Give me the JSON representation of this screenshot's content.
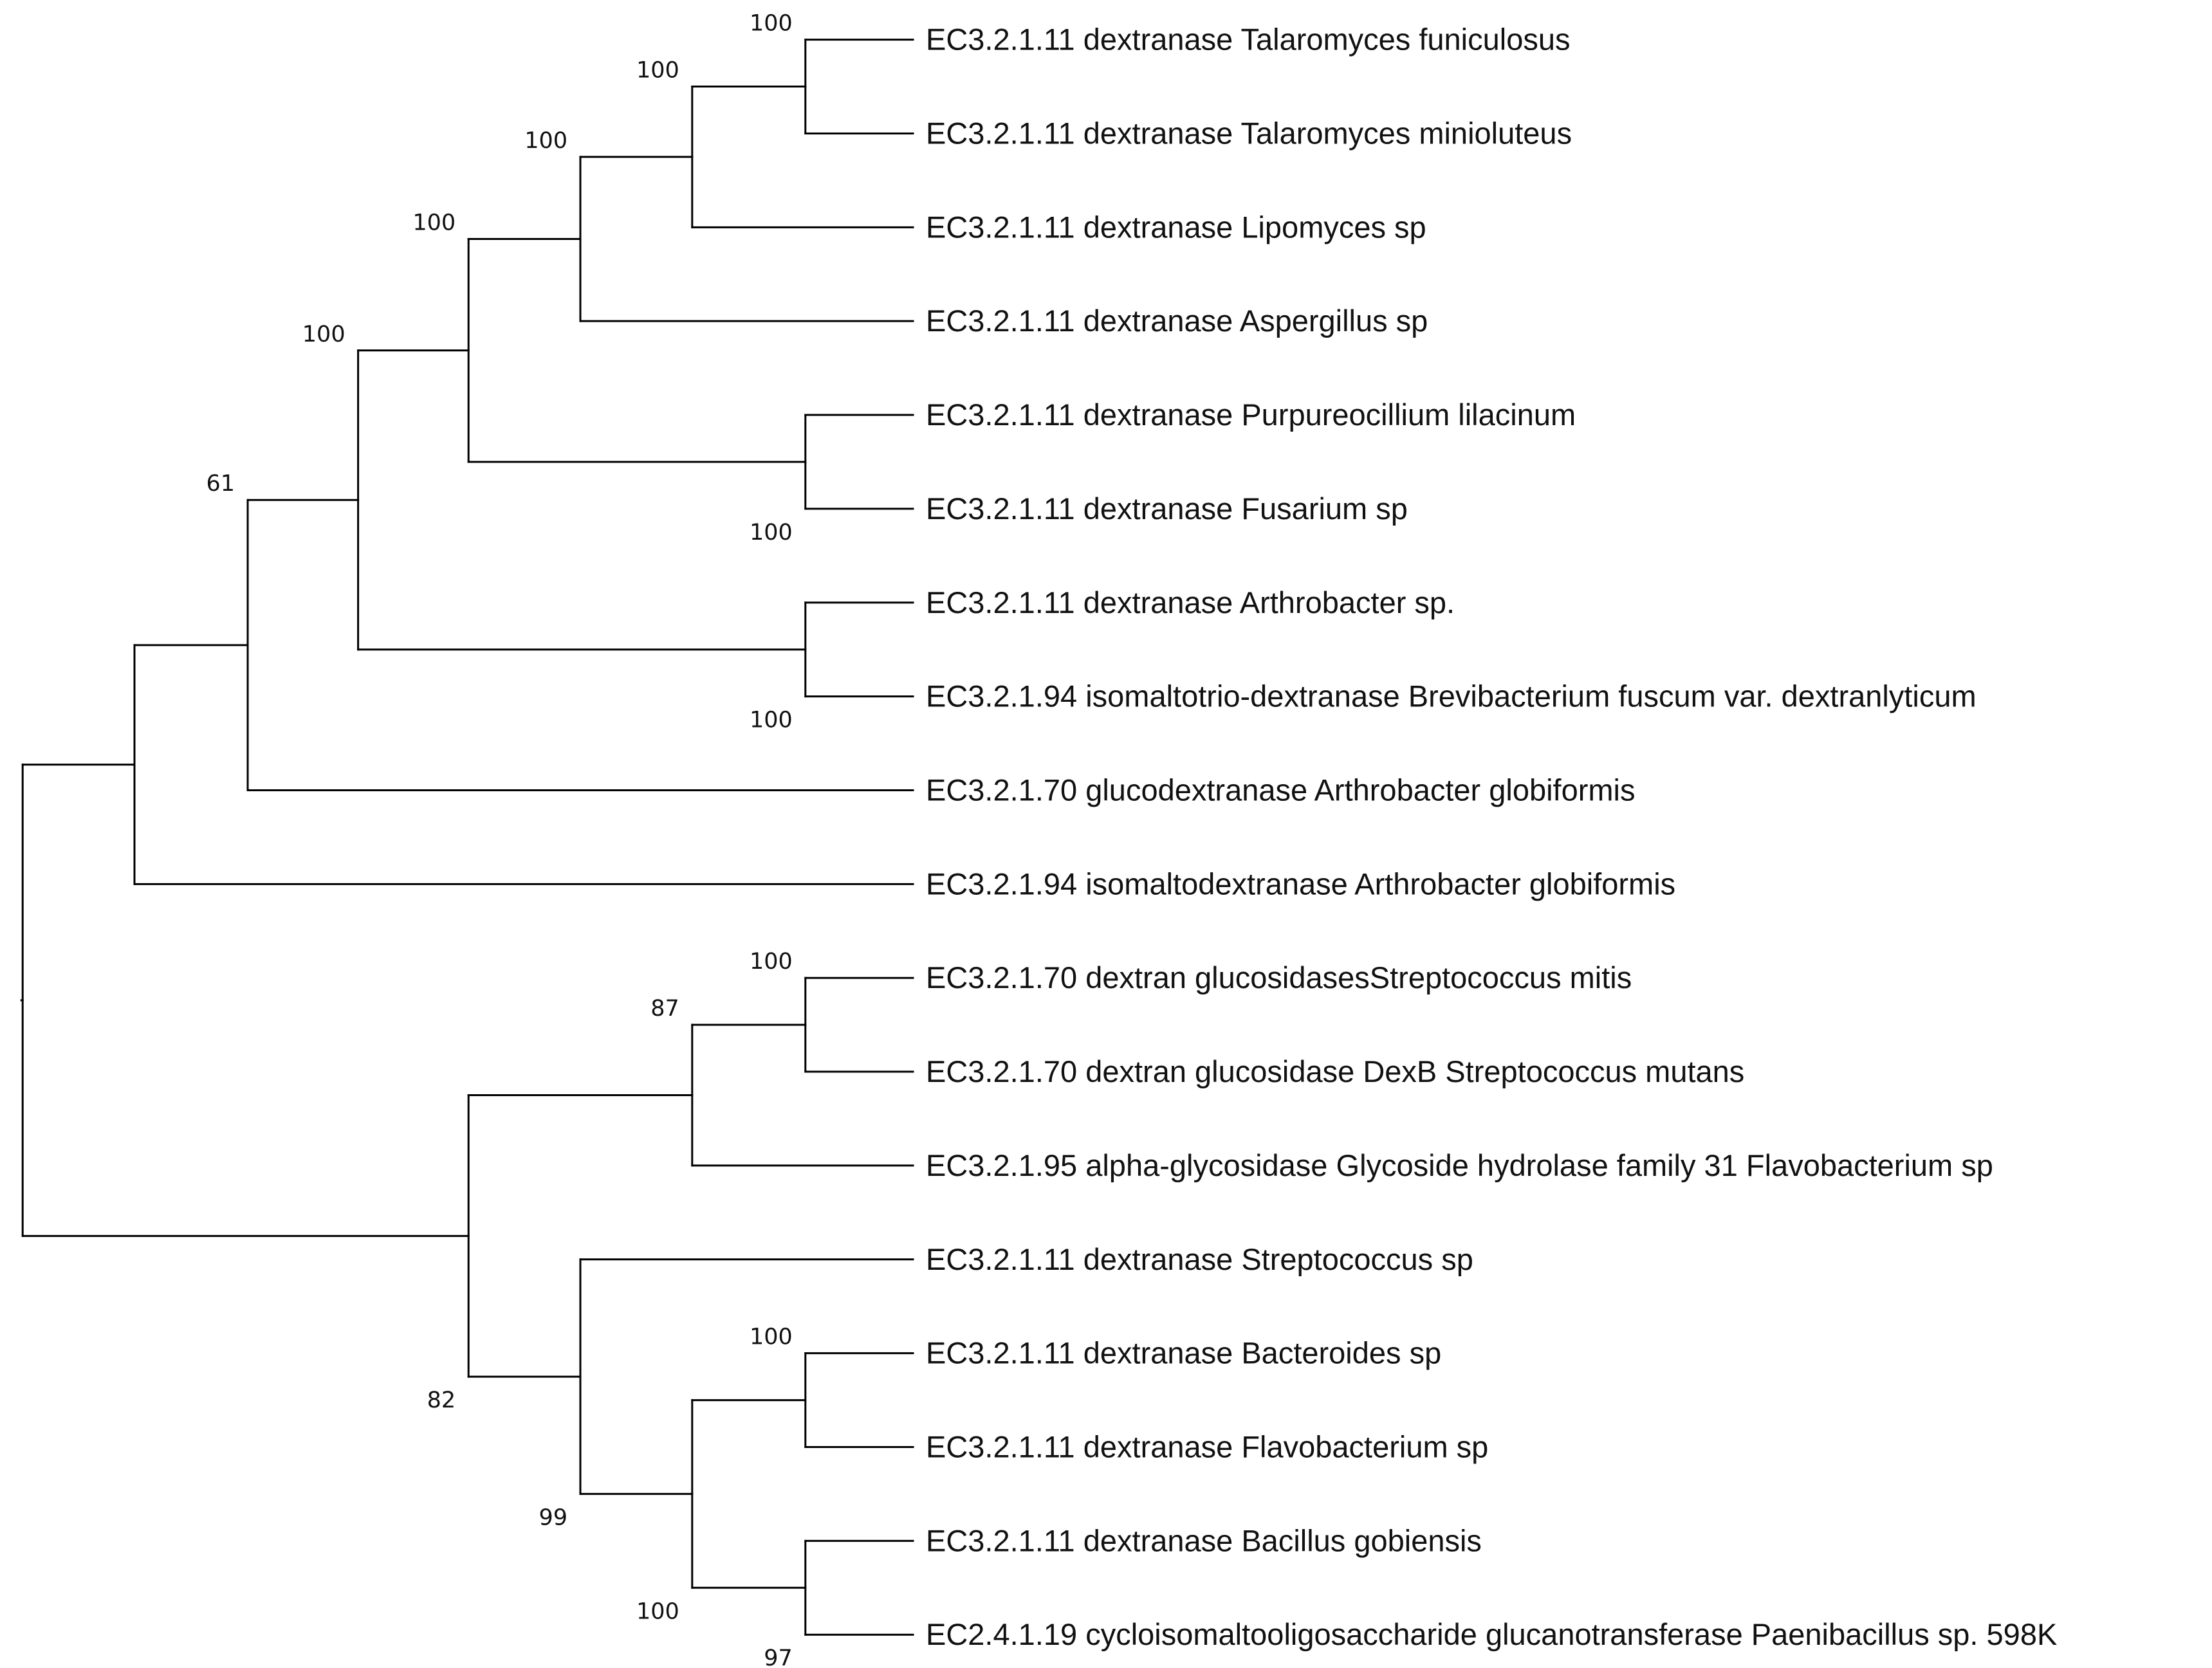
{
  "tree": {
    "leaves": [
      {
        "id": "L1",
        "label": "EC3.2.1.11 dextranase Talaromyces funiculosus"
      },
      {
        "id": "L2",
        "label": "EC3.2.1.11 dextranase Talaromyces minioluteus"
      },
      {
        "id": "L3",
        "label": "EC3.2.1.11 dextranase Lipomyces sp"
      },
      {
        "id": "L4",
        "label": "EC3.2.1.11 dextranase Aspergillus sp"
      },
      {
        "id": "L5",
        "label": "EC3.2.1.11 dextranase Purpureocillium lilacinum"
      },
      {
        "id": "L6",
        "label": "EC3.2.1.11 dextranase Fusarium sp"
      },
      {
        "id": "L7",
        "label": "EC3.2.1.11 dextranase Arthrobacter sp."
      },
      {
        "id": "L8",
        "label": "EC3.2.1.94 isomaltotrio-dextranase Brevibacterium fuscum var. dextranlyticum"
      },
      {
        "id": "L9",
        "label": "EC3.2.1.70 glucodextranase Arthrobacter globiformis"
      },
      {
        "id": "L10",
        "label": "EC3.2.1.94 isomaltodextranase Arthrobacter globiformis"
      },
      {
        "id": "L11",
        "label": "EC3.2.1.70 dextran glucosidasesStreptococcus mitis"
      },
      {
        "id": "L12",
        "label": "EC3.2.1.70 dextran glucosidase DexB Streptococcus mutans"
      },
      {
        "id": "L13",
        "label": "EC3.2.1.95 alpha-glycosidase Glycoside hydrolase family 31 Flavobacterium sp"
      },
      {
        "id": "L14",
        "label": "EC3.2.1.11 dextranase Streptococcus sp"
      },
      {
        "id": "L15",
        "label": "EC3.2.1.11 dextranase Bacteroides sp"
      },
      {
        "id": "L16",
        "label": "EC3.2.1.11 dextranase Flavobacterium sp"
      },
      {
        "id": "L17",
        "label": "EC3.2.1.11 dextranase Bacillus gobiensis"
      },
      {
        "id": "L18",
        "label": "EC2.4.1.19 cycloisomaltooligosaccharide glucanotransferase Paenibacillus sp. 598K"
      }
    ],
    "nodes": [
      {
        "id": "N1",
        "children": [
          "L1",
          "L2"
        ],
        "support": "100"
      },
      {
        "id": "N2",
        "children": [
          "N1",
          "L3"
        ],
        "support": "100"
      },
      {
        "id": "N3",
        "children": [
          "N2",
          "L4"
        ],
        "support": "100"
      },
      {
        "id": "N4",
        "children": [
          "L5",
          "L6"
        ],
        "support": "100"
      },
      {
        "id": "N5",
        "children": [
          "N3",
          "N4"
        ],
        "support": "100"
      },
      {
        "id": "N6",
        "children": [
          "L7",
          "L8"
        ],
        "support": "100"
      },
      {
        "id": "N7",
        "children": [
          "N5",
          "N6"
        ],
        "support": "100"
      },
      {
        "id": "N8",
        "children": [
          "N7",
          "L9"
        ],
        "support": "61"
      },
      {
        "id": "N9",
        "children": [
          "N8",
          "L10"
        ],
        "support": ""
      },
      {
        "id": "N10",
        "children": [
          "L11",
          "L12"
        ],
        "support": "100"
      },
      {
        "id": "N11",
        "children": [
          "N10",
          "L13"
        ],
        "support": "87"
      },
      {
        "id": "N12",
        "children": [
          "L15",
          "L16"
        ],
        "support": "100"
      },
      {
        "id": "N13",
        "children": [
          "L17",
          "L18"
        ],
        "support": "97"
      },
      {
        "id": "N14",
        "children": [
          "N12",
          "N13"
        ],
        "support": "100"
      },
      {
        "id": "N15",
        "children": [
          "L14",
          "N14"
        ],
        "support": "99"
      },
      {
        "id": "N16",
        "children": [
          "N11",
          "N15"
        ],
        "support": "82"
      },
      {
        "id": "ROOT",
        "children": [
          "N9",
          "N16"
        ],
        "support": ""
      }
    ]
  }
}
